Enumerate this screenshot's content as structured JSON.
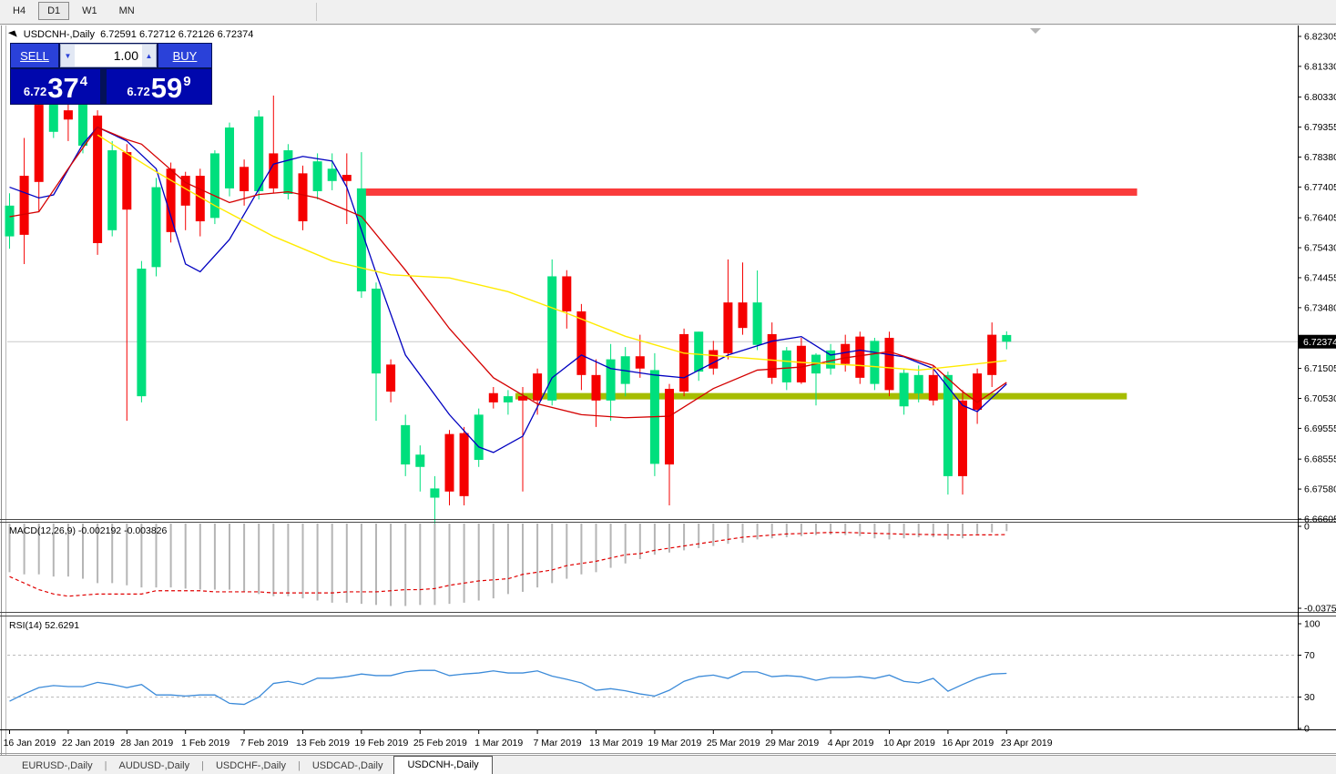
{
  "toolbar": {
    "timeframes": [
      "H4",
      "D1",
      "W1",
      "MN"
    ],
    "active": "D1"
  },
  "chart_header": {
    "marker_icon": "◥",
    "symbol_title": "USDCNH-,Daily",
    "ohlc": "6.72591 6.72712 6.72126 6.72374"
  },
  "trade_panel": {
    "sell_label": "SELL",
    "buy_label": "BUY",
    "volume": "1.00",
    "spin_down_icon": "▼",
    "spin_up_icon": "▲",
    "sell_price": {
      "prefix": "6.72",
      "big": "37",
      "sup": "4"
    },
    "buy_price": {
      "prefix": "6.72",
      "big": "59",
      "sup": "9"
    }
  },
  "price_axis": {
    "ticks": [
      "6.82305",
      "6.81330",
      "6.80330",
      "6.79355",
      "6.78380",
      "6.77405",
      "6.76405",
      "6.75430",
      "6.74455",
      "6.73480",
      "6.72480",
      "6.71505",
      "6.70530",
      "6.69555",
      "6.68555",
      "6.67580",
      "6.66605"
    ],
    "current_price": "6.72374"
  },
  "macd_panel": {
    "label": "MACD(12,26,9) -0.002192 -0.003826",
    "tick_top": "0",
    "tick_bottom": "-0.037529"
  },
  "rsi_panel": {
    "label": "RSI(14) 52.6291",
    "ticks": [
      "100",
      "70",
      "30",
      "0"
    ],
    "tick_values": [
      100,
      70,
      30,
      0
    ],
    "levels": [
      70,
      30
    ]
  },
  "date_axis": {
    "labels": [
      "16 Jan 2019",
      "22 Jan 2019",
      "28 Jan 2019",
      "1 Feb 2019",
      "7 Feb 2019",
      "13 Feb 2019",
      "19 Feb 2019",
      "25 Feb 2019",
      "1 Mar 2019",
      "7 Mar 2019",
      "13 Mar 2019",
      "19 Mar 2019",
      "25 Mar 2019",
      "29 Mar 2019",
      "4 Apr 2019",
      "10 Apr 2019",
      "16 Apr 2019",
      "23 Apr 2019"
    ],
    "label_indices": [
      0,
      4,
      8,
      12,
      16,
      20,
      24,
      28,
      32,
      36,
      40,
      44,
      48,
      52,
      56,
      60,
      64,
      68
    ]
  },
  "tabs": {
    "items": [
      "EURUSD-,Daily",
      "AUDUSD-,Daily",
      "USDCHF-,Daily",
      "USDCAD-,Daily",
      "USDCNH-,Daily"
    ],
    "active": "USDCNH-,Daily"
  },
  "colors": {
    "candle_up": "#00DF7D",
    "candle_down": "#F50000",
    "ma_fast": "#0000C0",
    "ma_mid": "#D40000",
    "ma_slow": "#FFEB00",
    "resistance": "#FA3B3B",
    "support": "#A6BD00",
    "macd_bar": "#B5B5B5",
    "macd_signal": "#E00000",
    "rsi_line": "#3C8BD9",
    "grid": "#C8C8C8",
    "axis_text": "#000000",
    "price_tag_bg": "#000000",
    "price_tag_text": "#FFFFFF"
  },
  "chart_data": {
    "type": "candlestick+indicators",
    "symbol": "USDCNH-,Daily",
    "timeframe": "D1",
    "price_range": [
      6.66605,
      6.826
    ],
    "current_price": 6.72374,
    "levels": {
      "resistance": {
        "price": 6.7724,
        "i1": 24.1,
        "i2": 76.9
      },
      "support": {
        "price": 6.706,
        "i1": 34.5,
        "i2": 76.2
      }
    },
    "candles": [
      [
        6.758,
        6.772,
        6.754,
        6.768,
        "g"
      ],
      [
        6.7777,
        6.79,
        6.749,
        6.7585,
        "r"
      ],
      [
        6.8008,
        6.8088,
        6.7659,
        6.7757,
        "r"
      ],
      [
        6.792,
        6.803,
        6.79,
        6.801,
        "g"
      ],
      [
        6.799,
        6.801,
        6.789,
        6.796,
        "r"
      ],
      [
        6.7875,
        6.803,
        6.785,
        6.8014,
        "g"
      ],
      [
        6.7973,
        6.799,
        6.752,
        6.7558,
        "r"
      ],
      [
        6.76,
        6.789,
        6.758,
        6.786,
        "g"
      ],
      [
        6.7854,
        6.788,
        6.698,
        6.7667,
        "r"
      ],
      [
        6.706,
        6.75,
        6.704,
        6.7475,
        "g"
      ],
      [
        6.748,
        6.777,
        6.745,
        6.774,
        "g"
      ],
      [
        6.78,
        6.782,
        6.756,
        6.7594,
        "r"
      ],
      [
        6.7777,
        6.779,
        6.76,
        6.768,
        "r"
      ],
      [
        6.7777,
        6.78,
        6.758,
        6.7629,
        "r"
      ],
      [
        6.764,
        6.786,
        6.762,
        6.785,
        "g"
      ],
      [
        6.7736,
        6.795,
        6.771,
        6.7934,
        "g"
      ],
      [
        6.7806,
        6.783,
        6.768,
        6.7727,
        "r"
      ],
      [
        6.7727,
        6.799,
        6.77,
        6.797,
        "g"
      ],
      [
        6.785,
        6.8038,
        6.772,
        6.7736,
        "r"
      ],
      [
        6.7718,
        6.788,
        6.77,
        6.786,
        "g"
      ],
      [
        6.7785,
        6.781,
        6.76,
        6.7629,
        "r"
      ],
      [
        6.7727,
        6.785,
        6.77,
        6.7824,
        "g"
      ],
      [
        6.776,
        6.785,
        6.773,
        6.78,
        "g"
      ],
      [
        6.778,
        6.785,
        6.762,
        6.776,
        "r"
      ],
      [
        6.7401,
        6.7854,
        6.738,
        6.7736,
        "g"
      ],
      [
        6.7134,
        6.743,
        6.698,
        6.741,
        "g"
      ],
      [
        6.7163,
        6.718,
        6.704,
        6.7075,
        "r"
      ],
      [
        6.6838,
        6.7,
        6.68,
        6.6966,
        "g"
      ],
      [
        6.683,
        6.69,
        6.675,
        6.687,
        "g"
      ],
      [
        6.673,
        6.68,
        6.662,
        6.676,
        "g"
      ],
      [
        6.6937,
        6.695,
        6.6705,
        6.675,
        "r"
      ],
      [
        6.694,
        6.696,
        6.6705,
        6.6735,
        "r"
      ],
      [
        6.6853,
        6.702,
        6.683,
        6.7,
        "g"
      ],
      [
        6.707,
        6.709,
        6.702,
        6.704,
        "r"
      ],
      [
        6.704,
        6.708,
        6.7,
        6.706,
        "g"
      ],
      [
        6.706,
        6.709,
        6.675,
        6.7046,
        "r"
      ],
      [
        6.7134,
        6.715,
        6.7,
        6.7046,
        "r"
      ],
      [
        6.7046,
        6.7505,
        6.703,
        6.745,
        "g"
      ],
      [
        6.745,
        6.747,
        6.728,
        6.7336,
        "r"
      ],
      [
        6.7336,
        6.736,
        6.708,
        6.7129,
        "r"
      ],
      [
        6.7129,
        6.718,
        6.696,
        6.7046,
        "r"
      ],
      [
        6.7046,
        6.723,
        6.698,
        6.718,
        "g"
      ],
      [
        6.71,
        6.722,
        6.706,
        6.719,
        "g"
      ],
      [
        6.719,
        6.726,
        6.712,
        6.715,
        "r"
      ],
      [
        6.684,
        6.72,
        6.68,
        6.7145,
        "g"
      ],
      [
        6.7084,
        6.71,
        6.6705,
        6.6838,
        "r"
      ],
      [
        6.7262,
        6.728,
        6.706,
        6.7075,
        "r"
      ],
      [
        6.714,
        6.727,
        6.711,
        6.727,
        "g"
      ],
      [
        6.721,
        6.724,
        6.713,
        6.715,
        "r"
      ],
      [
        6.7365,
        6.7505,
        6.718,
        6.72,
        "r"
      ],
      [
        6.7365,
        6.7495,
        6.726,
        6.7282,
        "r"
      ],
      [
        6.7227,
        6.7469,
        6.721,
        6.7365,
        "g"
      ],
      [
        6.7262,
        6.73,
        6.71,
        6.712,
        "r"
      ],
      [
        6.7105,
        6.722,
        6.708,
        6.7209,
        "g"
      ],
      [
        6.7224,
        6.725,
        6.71,
        6.7105,
        "r"
      ],
      [
        6.7134,
        6.72,
        6.703,
        6.7195,
        "g"
      ],
      [
        6.715,
        6.723,
        6.713,
        6.7209,
        "g"
      ],
      [
        6.723,
        6.726,
        6.714,
        6.7165,
        "r"
      ],
      [
        6.7254,
        6.727,
        6.71,
        6.712,
        "r"
      ],
      [
        6.71,
        6.725,
        6.708,
        6.724,
        "g"
      ],
      [
        6.725,
        6.727,
        6.706,
        6.708,
        "r"
      ],
      [
        6.7027,
        6.715,
        6.7,
        6.7136,
        "g"
      ],
      [
        6.7069,
        6.716,
        6.704,
        6.7129,
        "g"
      ],
      [
        6.7129,
        6.716,
        6.703,
        6.7046,
        "r"
      ],
      [
        6.68,
        6.714,
        6.674,
        6.7129,
        "g"
      ],
      [
        6.7046,
        6.708,
        6.674,
        6.68,
        "r"
      ],
      [
        6.7134,
        6.715,
        6.697,
        6.7016,
        "r"
      ],
      [
        6.726,
        6.73,
        6.709,
        6.7129,
        "r"
      ],
      [
        6.72591,
        6.72712,
        6.72126,
        6.72374,
        "g"
      ]
    ],
    "ma_fast_points": [
      [
        0,
        6.774
      ],
      [
        2,
        6.7705
      ],
      [
        3,
        6.7715
      ],
      [
        5,
        6.788
      ],
      [
        6,
        6.7935
      ],
      [
        8,
        6.789
      ],
      [
        10,
        6.78
      ],
      [
        12,
        6.749
      ],
      [
        13,
        6.7465
      ],
      [
        15,
        6.757
      ],
      [
        18,
        6.7815
      ],
      [
        20,
        6.784
      ],
      [
        22,
        6.7825
      ],
      [
        23,
        6.774
      ],
      [
        25,
        6.746
      ],
      [
        27,
        6.7194
      ],
      [
        30,
        6.7
      ],
      [
        32,
        6.6895
      ],
      [
        33,
        6.6877
      ],
      [
        35,
        6.693
      ],
      [
        37,
        6.712
      ],
      [
        39,
        6.7194
      ],
      [
        41,
        6.715
      ],
      [
        44,
        6.7129
      ],
      [
        46,
        6.712
      ],
      [
        49,
        6.7194
      ],
      [
        52,
        6.7239
      ],
      [
        54,
        6.7254
      ],
      [
        56,
        6.7194
      ],
      [
        58,
        6.721
      ],
      [
        61,
        6.7188
      ],
      [
        63,
        6.715
      ],
      [
        65,
        6.703
      ],
      [
        66,
        6.701
      ],
      [
        68,
        6.71
      ]
    ],
    "ma_mid_points": [
      [
        0,
        6.7644
      ],
      [
        2,
        6.766
      ],
      [
        4,
        6.78
      ],
      [
        6,
        6.7935
      ],
      [
        8,
        6.7895
      ],
      [
        9,
        6.788
      ],
      [
        12,
        6.7755
      ],
      [
        15,
        6.769
      ],
      [
        17,
        6.7716
      ],
      [
        19,
        6.7725
      ],
      [
        21,
        6.7705
      ],
      [
        24,
        6.7645
      ],
      [
        27,
        6.747
      ],
      [
        30,
        6.728
      ],
      [
        33,
        6.712
      ],
      [
        36,
        6.7035
      ],
      [
        39,
        6.7
      ],
      [
        42,
        6.699
      ],
      [
        45,
        6.6995
      ],
      [
        48,
        6.7085
      ],
      [
        51,
        6.7145
      ],
      [
        54,
        6.7155
      ],
      [
        57,
        6.7185
      ],
      [
        60,
        6.7205
      ],
      [
        63,
        6.716
      ],
      [
        65,
        6.7075
      ],
      [
        66,
        6.704
      ],
      [
        68,
        6.7105
      ]
    ],
    "ma_slow_points": [
      [
        6,
        6.791
      ],
      [
        10,
        6.779
      ],
      [
        14,
        6.768
      ],
      [
        18,
        6.758
      ],
      [
        22,
        6.75
      ],
      [
        26,
        6.7455
      ],
      [
        30,
        6.7445
      ],
      [
        34,
        6.74
      ],
      [
        38,
        6.733
      ],
      [
        42,
        6.7255
      ],
      [
        46,
        6.72
      ],
      [
        50,
        6.7185
      ],
      [
        54,
        6.717
      ],
      [
        58,
        6.716
      ],
      [
        62,
        6.7145
      ],
      [
        65,
        6.716
      ],
      [
        68,
        6.7176
      ]
    ],
    "macd_hist": [
      -0.021,
      -0.022,
      -0.022,
      -0.023,
      -0.023,
      -0.024,
      -0.026,
      -0.026,
      -0.027,
      -0.028,
      -0.028,
      -0.028,
      -0.0285,
      -0.029,
      -0.029,
      -0.029,
      -0.03,
      -0.031,
      -0.032,
      -0.032,
      -0.033,
      -0.034,
      -0.035,
      -0.035,
      -0.0355,
      -0.036,
      -0.0365,
      -0.0365,
      -0.036,
      -0.036,
      -0.0355,
      -0.035,
      -0.034,
      -0.033,
      -0.031,
      -0.03,
      -0.028,
      -0.026,
      -0.024,
      -0.022,
      -0.021,
      -0.019,
      -0.017,
      -0.015,
      -0.013,
      -0.012,
      -0.011,
      -0.01,
      -0.009,
      -0.008,
      -0.0075,
      -0.006,
      -0.0055,
      -0.005,
      -0.0045,
      -0.004,
      -0.0038,
      -0.004,
      -0.0045,
      -0.0055,
      -0.006,
      -0.0055,
      -0.005,
      -0.005,
      -0.006,
      -0.0055,
      -0.0035,
      -0.0028,
      -0.0022
    ],
    "macd_signal": [
      -0.023,
      -0.026,
      -0.029,
      -0.031,
      -0.032,
      -0.0315,
      -0.031,
      -0.031,
      -0.031,
      -0.031,
      -0.0295,
      -0.0295,
      -0.0295,
      -0.0295,
      -0.03,
      -0.03,
      -0.03,
      -0.03,
      -0.0305,
      -0.0305,
      -0.0305,
      -0.0305,
      -0.0305,
      -0.03,
      -0.03,
      -0.03,
      -0.0295,
      -0.029,
      -0.029,
      -0.0285,
      -0.027,
      -0.026,
      -0.025,
      -0.0245,
      -0.024,
      -0.022,
      -0.021,
      -0.02,
      -0.018,
      -0.017,
      -0.016,
      -0.0145,
      -0.013,
      -0.0125,
      -0.011,
      -0.01,
      -0.009,
      -0.008,
      -0.007,
      -0.006,
      -0.005,
      -0.0045,
      -0.004,
      -0.0035,
      -0.0033,
      -0.003,
      -0.0028,
      -0.0028,
      -0.003,
      -0.0032,
      -0.0034,
      -0.0036,
      -0.0037,
      -0.0038,
      -0.0039,
      -0.004,
      -0.0039,
      -0.0039,
      -0.0038
    ],
    "macd_range": [
      0,
      -0.037529
    ],
    "rsi": [
      26,
      33,
      39,
      41,
      40,
      40,
      44,
      42,
      39,
      42,
      32,
      32,
      31,
      32,
      32,
      24,
      23,
      30,
      43,
      45,
      42,
      48,
      48,
      49.5,
      52,
      50.5,
      50.5,
      54,
      55.5,
      55.5,
      50.5,
      52,
      53,
      55,
      53,
      53,
      55,
      50,
      47,
      43.5,
      36.5,
      38,
      36,
      33,
      31,
      36.5,
      45,
      49.5,
      51,
      47.8,
      54,
      54,
      49.5,
      50.5,
      49.5,
      46,
      48.7,
      48.7,
      49.5,
      47.8,
      51,
      45,
      43.5,
      47.8,
      35.6,
      42,
      48,
      52,
      52.6
    ],
    "rsi_range": [
      0,
      100
    ]
  }
}
